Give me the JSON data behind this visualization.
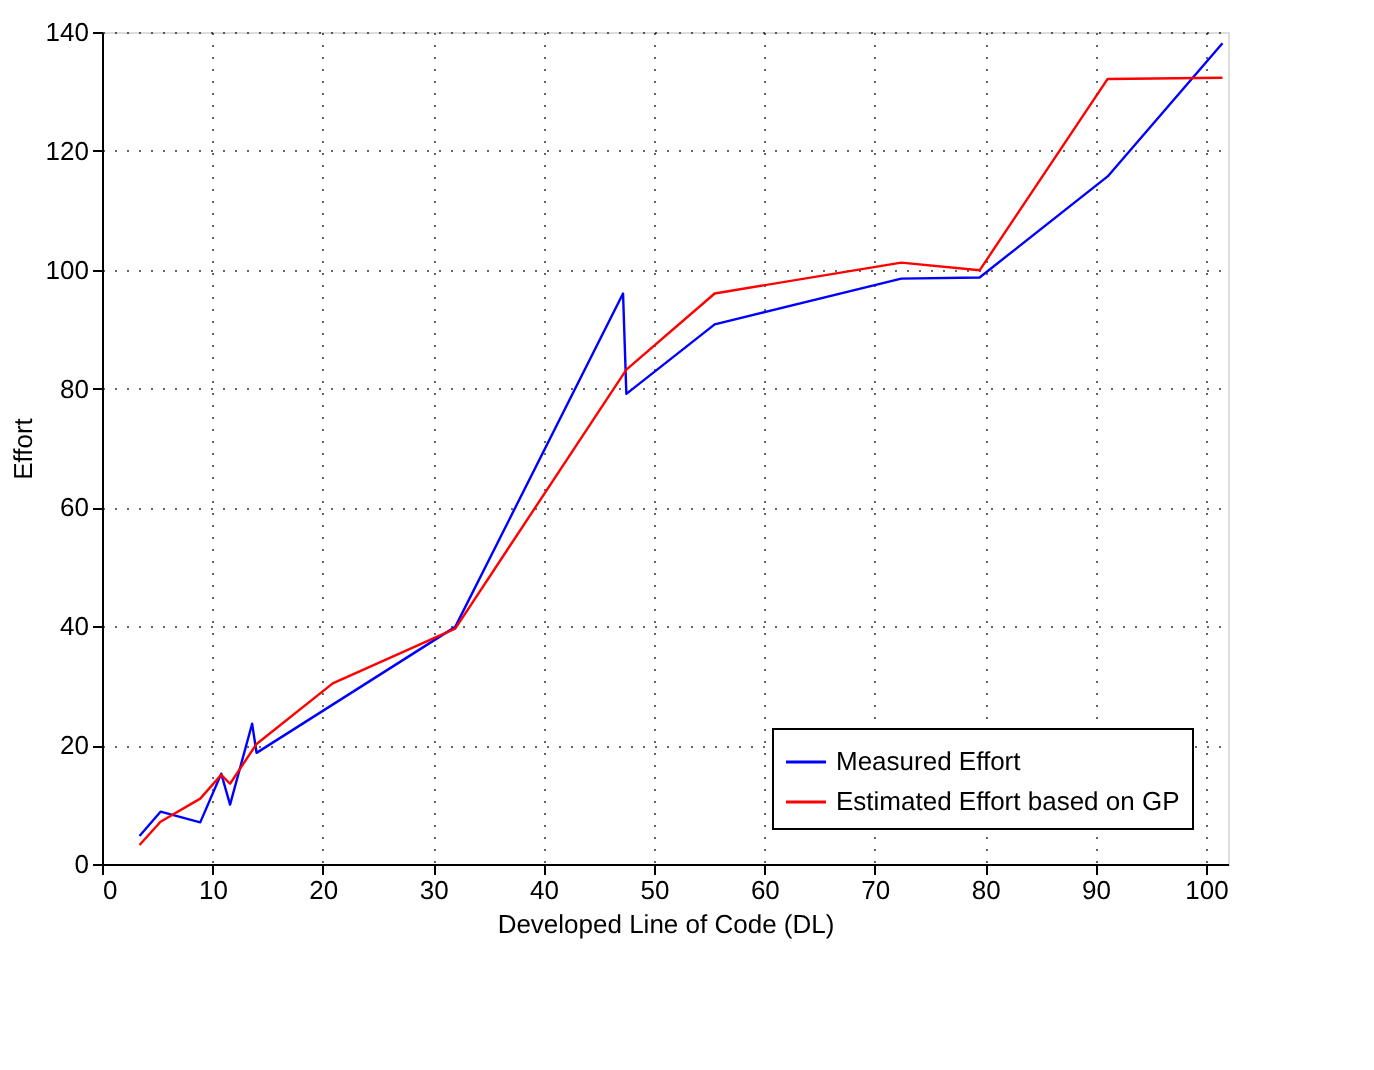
{
  "chart_data": {
    "type": "line",
    "xlabel": "Developed Line of Code (DL)",
    "ylabel": "Effort",
    "xlim": [
      0,
      102
    ],
    "xticks": [
      0,
      10,
      20,
      30,
      40,
      50,
      60,
      70,
      80,
      90,
      100
    ],
    "ylim": [
      0,
      140
    ],
    "yticks": [
      0,
      20,
      40,
      60,
      80,
      100,
      120,
      140
    ],
    "grid": true,
    "legend": "bottom right",
    "marker": "none",
    "line_style": "solid",
    "series": [
      {
        "name": "Measured Effort",
        "color": "#0000ff",
        "x": [
          3.4,
          5.3,
          8.9,
          10.8,
          11.6,
          13.6,
          14.0,
          32.0,
          47.2,
          47.5,
          55.5,
          72.4,
          79.5,
          91.1,
          101.5
        ],
        "values": [
          4.7,
          8.8,
          7.0,
          15.2,
          10.0,
          23.6,
          18.7,
          39.9,
          96.0,
          79.1,
          90.8,
          98.5,
          98.7,
          115.7,
          138.1
        ]
      },
      {
        "name": "Estimated Effort based on GP",
        "color": "#ff0000",
        "x": [
          3.4,
          5.3,
          8.9,
          10.8,
          11.6,
          14.0,
          20.9,
          32.0,
          47.5,
          55.5,
          72.4,
          79.5,
          91.1,
          101.5
        ],
        "values": [
          3.2,
          7.1,
          11.0,
          15.0,
          13.5,
          20.2,
          30.4,
          39.6,
          83.2,
          96.0,
          101.2,
          99.9,
          132.1,
          132.3
        ]
      }
    ]
  }
}
